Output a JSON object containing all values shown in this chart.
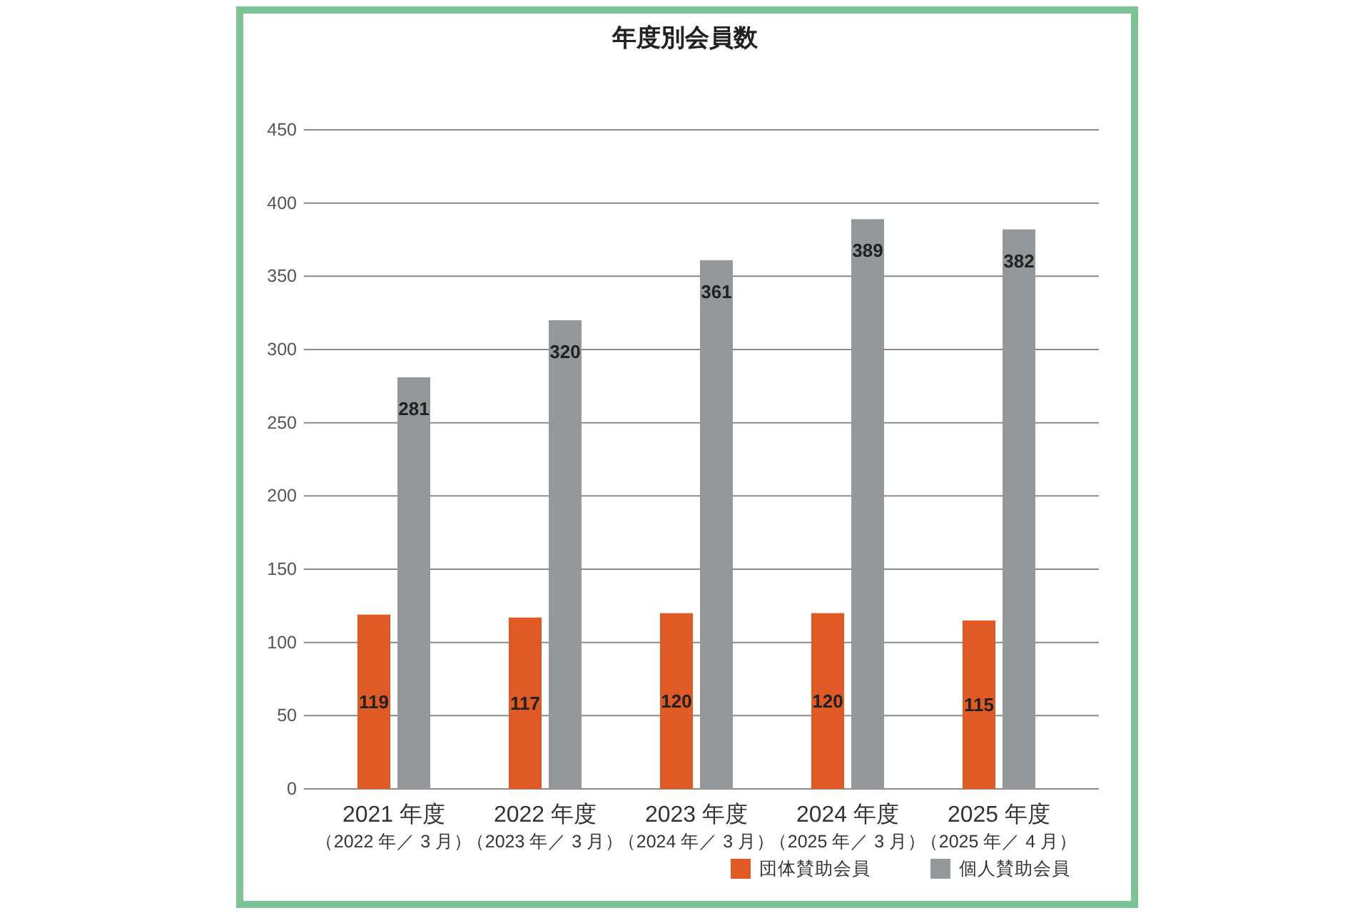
{
  "chart_data": {
    "type": "bar",
    "title": "年度別会員数",
    "categories": [
      "2021 年度（2022 年／ 3 月）",
      "2022 年度（2023 年／ 3 月）",
      "2023 年度（2024 年／ 3 月）",
      "2024 年度（2025 年／ 3 月）",
      "2025 年度（2025 年／ 4 月）"
    ],
    "series": [
      {
        "name": "団体賛助会員",
        "color": "#e05a26",
        "values": [
          119,
          117,
          120,
          120,
          115
        ]
      },
      {
        "name": "個人賛助会員",
        "color": "#95989b",
        "values": [
          281,
          320,
          361,
          389,
          382
        ]
      }
    ],
    "ylim": [
      0,
      450
    ],
    "yticks": [
      0,
      50,
      100,
      150,
      200,
      250,
      300,
      350,
      400,
      450
    ],
    "grid": "y",
    "legend": "bottom right",
    "data_labels": true
  }
}
